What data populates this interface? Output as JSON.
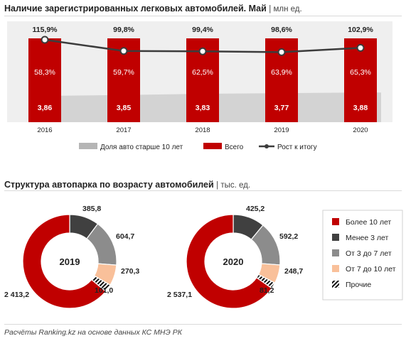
{
  "colors": {
    "red": "#c00000",
    "dark_gray": "#404040",
    "gray": "#8c8c8c",
    "peach": "#f9c09a",
    "area": "#d3d3d3",
    "panel": "#efefef",
    "line": "#3c3c3c"
  },
  "header": {
    "title": "Наличие зарегистрированных легковых автомобилей. Май",
    "unit": "| млн ед."
  },
  "section2": {
    "title": "Структура автопарка по  возрасту автомобилей",
    "unit": "| тыс. ед."
  },
  "source": "Расчёты Ranking.kz на основе данных  КС МНЭ РК",
  "chart_data": [
    {
      "type": "bar",
      "categories": [
        "2016",
        "2017",
        "2018",
        "2019",
        "2020"
      ],
      "series": [
        {
          "name": "Доля авто старше 10 лет",
          "chart_type": "area",
          "values": [
            58.3,
            59.7,
            62.5,
            63.9,
            65.3
          ],
          "labels": [
            "58,3%",
            "59,7%",
            "62,5%",
            "63,9%",
            "65,3%"
          ]
        },
        {
          "name": "Всего",
          "chart_type": "bar",
          "values": [
            3.86,
            3.85,
            3.83,
            3.77,
            3.88
          ],
          "labels": [
            "3,86",
            "3,85",
            "3,83",
            "3,77",
            "3,88"
          ]
        },
        {
          "name": "Рост к итогу",
          "chart_type": "line",
          "values": [
            115.9,
            99.8,
            99.4,
            98.6,
            102.9
          ],
          "labels": [
            "115,9%",
            "99,8%",
            "99,4%",
            "98,6%",
            "102,9%"
          ]
        }
      ],
      "legend_position": "bottom"
    },
    {
      "type": "pie",
      "style": "donut",
      "title": "2019",
      "categories": [
        "Более 10 лет",
        "Менее 3 лет",
        "От 3 до 7 лет",
        "От 7 до 10 лет",
        "Прочие"
      ],
      "values": [
        2413.2,
        385.8,
        604.7,
        270.3,
        101.0
      ],
      "labels": [
        "2 413,2",
        "385,8",
        "604,7",
        "270,3",
        "101,0"
      ]
    },
    {
      "type": "pie",
      "style": "donut",
      "title": "2020",
      "categories": [
        "Более 10 лет",
        "Менее 3 лет",
        "От 3 до 7 лет",
        "От 7 до 10 лет",
        "Прочие"
      ],
      "values": [
        2537.1,
        425.2,
        592.2,
        248.7,
        81.2
      ],
      "labels": [
        "2 537,1",
        "425,2",
        "592,2",
        "248,7",
        "81,2"
      ]
    }
  ],
  "donut_legend": {
    "items": [
      {
        "label": "Более 10 лет",
        "swatch": "red"
      },
      {
        "label": "Менее 3 лет",
        "swatch": "dark_gray"
      },
      {
        "label": "От 3 до 7 лет",
        "swatch": "gray"
      },
      {
        "label": "От 7 до 10 лет",
        "swatch": "peach"
      },
      {
        "label": "Прочие",
        "swatch": "hatch"
      }
    ]
  }
}
